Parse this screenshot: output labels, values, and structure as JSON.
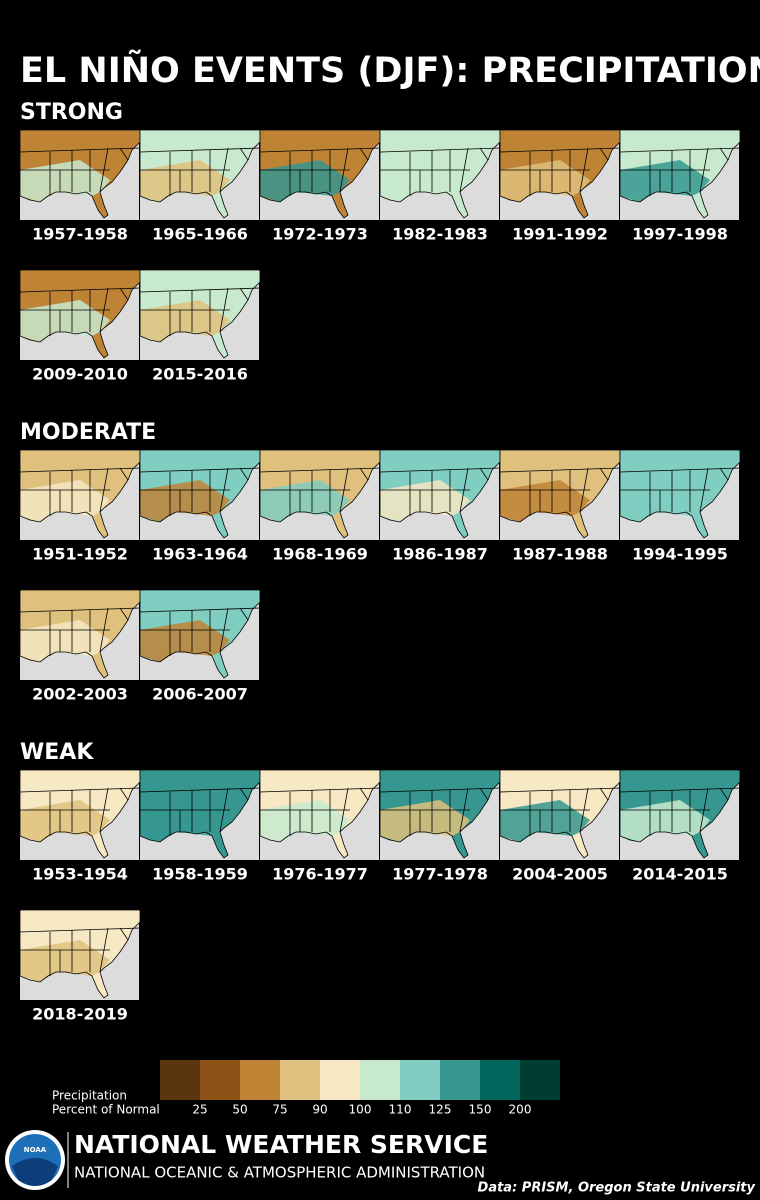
{
  "title": "EL NIÑO EVENTS (DJF): PRECIPITATION",
  "sections": [
    {
      "heading": "STRONG",
      "maps": [
        "1957-1958",
        "1965-1966",
        "1972-1973",
        "1982-1983",
        "1991-1992",
        "1997-1998",
        "2009-2010",
        "2015-2016"
      ]
    },
    {
      "heading": "MODERATE",
      "maps": [
        "1951-1952",
        "1963-1964",
        "1968-1969",
        "1986-1987",
        "1987-1988",
        "1994-1995",
        "2002-2003",
        "2006-2007"
      ]
    },
    {
      "heading": "WEAK",
      "maps": [
        "1953-1954",
        "1958-1959",
        "1976-1977",
        "1977-1978",
        "2004-2005",
        "2014-2015",
        "2018-2019"
      ]
    }
  ],
  "legend": {
    "title": [
      "Precipitation",
      "Percent of Normal"
    ],
    "colors": [
      "#5a3510",
      "#8c5216",
      "#bf8336",
      "#dfc17d",
      "#f6e8c3",
      "#c7eacf",
      "#80cdc1",
      "#35978f",
      "#01665e",
      "#003c30"
    ],
    "ticks": [
      25,
      50,
      75,
      90,
      100,
      110,
      125,
      150,
      200
    ]
  },
  "footer": {
    "logo": "NOAA",
    "agency": "NATIONAL WEATHER SERVICE",
    "subagency": "NATIONAL OCEANIC & ATMOSPHERIC ADMINISTRATION",
    "credit": "Data: PRISM, Oregon State University"
  }
}
